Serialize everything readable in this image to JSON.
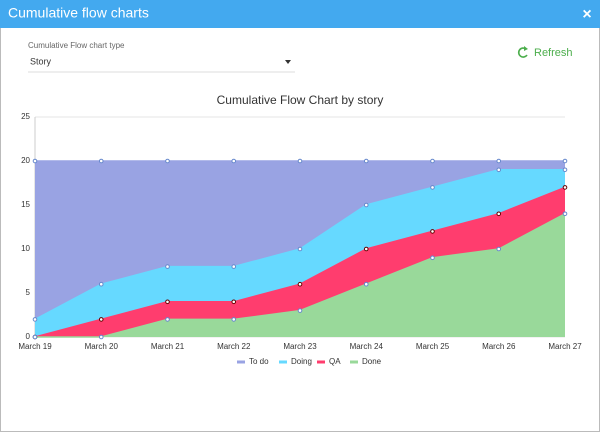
{
  "dialog": {
    "title": "Cumulative flow charts",
    "close": "×"
  },
  "filter": {
    "label": "Cumulative Flow chart type",
    "value": "Story"
  },
  "refresh": "Refresh",
  "chart_data": {
    "type": "area",
    "stacked": true,
    "title": "Cumulative Flow Chart by story",
    "categories": [
      "March 19",
      "March 20",
      "March 21",
      "March 22",
      "March 23",
      "March 24",
      "March 25",
      "March 26",
      "March 27"
    ],
    "series": [
      {
        "name": "To do",
        "color": "#99a3e3",
        "values": [
          18,
          14,
          12,
          12,
          10,
          5,
          3,
          1,
          1
        ]
      },
      {
        "name": "Doing",
        "color": "#66d9ff",
        "values": [
          2,
          4,
          4,
          4,
          4,
          5,
          5,
          5,
          2
        ]
      },
      {
        "name": "QA",
        "color": "#ff3d6e",
        "values": [
          0,
          2,
          2,
          2,
          3,
          4,
          3,
          4,
          3
        ]
      },
      {
        "name": "Done",
        "color": "#99d99a",
        "values": [
          0,
          0,
          2,
          2,
          3,
          6,
          9,
          10,
          14
        ]
      }
    ],
    "ylim": [
      0,
      25
    ],
    "yticks": [
      0,
      5,
      10,
      15,
      20,
      25
    ],
    "grid": true,
    "legend": "bottom"
  }
}
